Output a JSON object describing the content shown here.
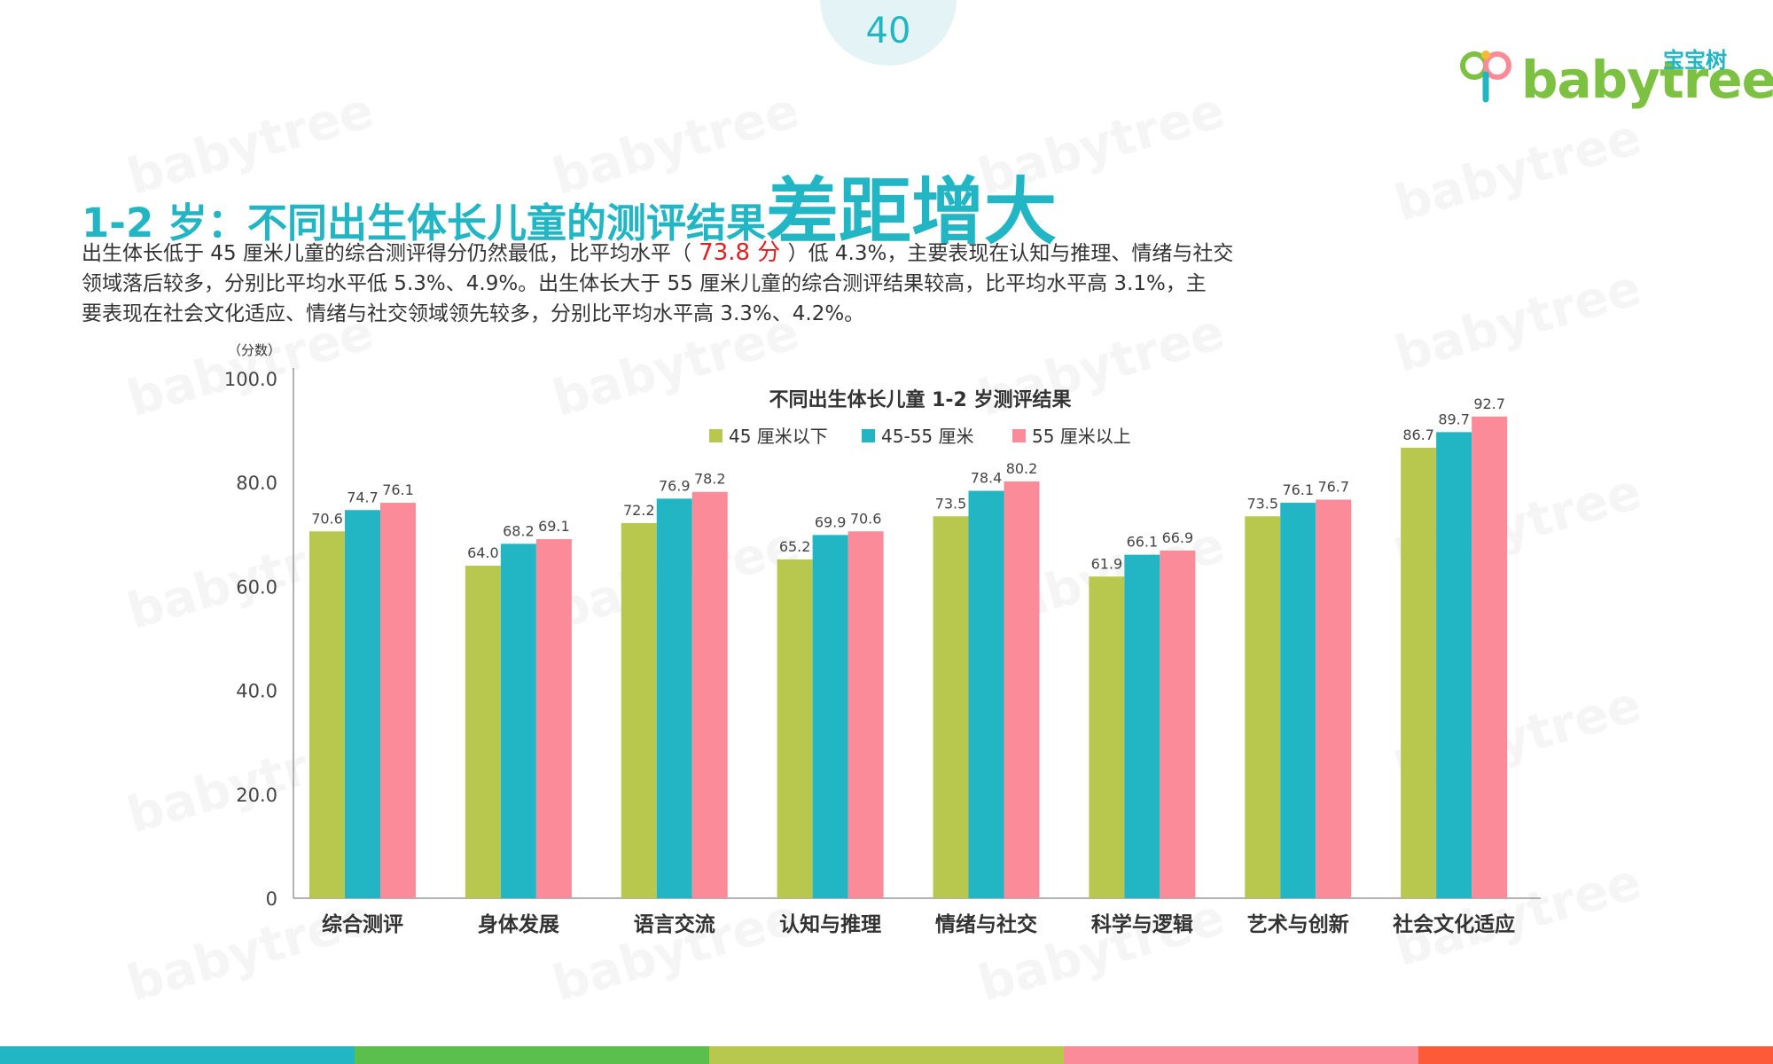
{
  "page_number": "40",
  "logo": {
    "cn": "宝宝树",
    "en": "babytree",
    "mark_icon": "babytree-logo-icon"
  },
  "watermark_text": "babytree",
  "title": {
    "main": "1-2 岁：不同出生体长儿童的测评结果",
    "emphasis": "差距增大"
  },
  "description": {
    "line1_pre": "出生体长低于 45 厘米儿童的综合测评得分仍然最低，比平均水平（",
    "highlight": " 73.8 分 ",
    "line1_post": "）低 4.3%，主要表现在认知与推理、情绪与社交",
    "line2": "领域落后较多，分别比平均水平低 5.3%、4.9%。出生体长大于 55 厘米儿童的综合测评结果较高，比平均水平高 3.1%，主",
    "line3": "要表现在社会文化适应、情绪与社交领域领先较多，分别比平均水平高 3.3%、4.2%。"
  },
  "colors": {
    "accent": "#22b5c3",
    "series": [
      "#b8c84e",
      "#22b5c3",
      "#fb8b98"
    ],
    "bottom_bar": [
      "#22b5c3",
      "#5bbf4e",
      "#b8c84e",
      "#fb8b98",
      "#fd5a3a"
    ]
  },
  "chart_data": {
    "type": "bar",
    "title": "不同出生体长儿童 1-2 岁测评结果",
    "ylabel": "（分数）",
    "ylim": [
      0,
      100
    ],
    "yticks": [
      "0",
      "20.0",
      "40.0",
      "60.0",
      "80.0",
      "100.0"
    ],
    "grid": false,
    "legend_position": "top",
    "categories": [
      "综合测评",
      "身体发展",
      "语言交流",
      "认知与推理",
      "情绪与社交",
      "科学与逻辑",
      "艺术与创新",
      "社会文化适应"
    ],
    "series": [
      {
        "name": "45 厘米以下",
        "values": [
          70.6,
          64.0,
          72.2,
          65.2,
          73.5,
          61.9,
          73.5,
          86.7
        ],
        "labels": [
          "70.6",
          "64.0",
          "72.2",
          "65.2",
          "73.5",
          "61.9",
          "73.5",
          "86.7"
        ]
      },
      {
        "name": "45-55 厘米",
        "values": [
          74.7,
          68.2,
          76.9,
          69.9,
          78.4,
          66.1,
          76.1,
          89.7
        ],
        "labels": [
          "74.7",
          "68.2",
          "76.9",
          "69.9",
          "78.4",
          "66.1",
          "76.1",
          "89.7"
        ]
      },
      {
        "name": "55 厘米以上",
        "values": [
          76.1,
          69.1,
          78.2,
          70.6,
          80.2,
          66.9,
          76.7,
          92.7
        ],
        "labels": [
          "76.1",
          "69.1",
          "78.2",
          "70.6",
          "80.2",
          "66.9",
          "76.7",
          "92.7"
        ]
      }
    ]
  }
}
